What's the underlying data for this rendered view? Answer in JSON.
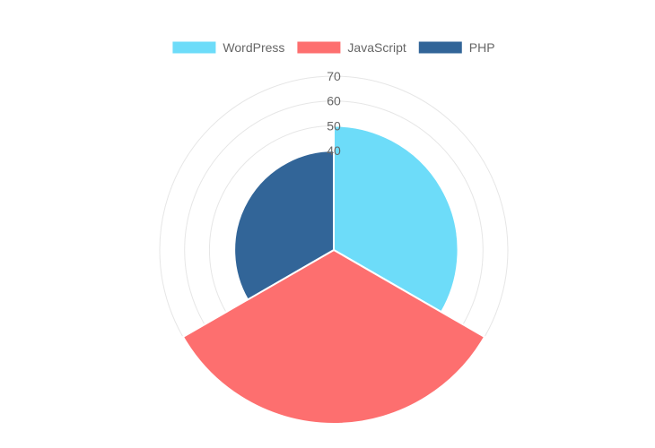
{
  "chart_data": {
    "type": "polarArea",
    "categories": [
      "WordPress",
      "JavaScript",
      "PHP"
    ],
    "values": [
      50,
      70,
      40
    ],
    "colors": [
      "#6ddcf9",
      "#fd6f6f",
      "#326598"
    ],
    "legend_position": "top",
    "radial_scale": {
      "min": 0,
      "max": 70,
      "ticks": [
        10,
        20,
        30,
        40,
        50,
        60,
        70
      ]
    },
    "visible_tick_labels": [
      "40",
      "50",
      "60",
      "70"
    ],
    "grid": true
  }
}
